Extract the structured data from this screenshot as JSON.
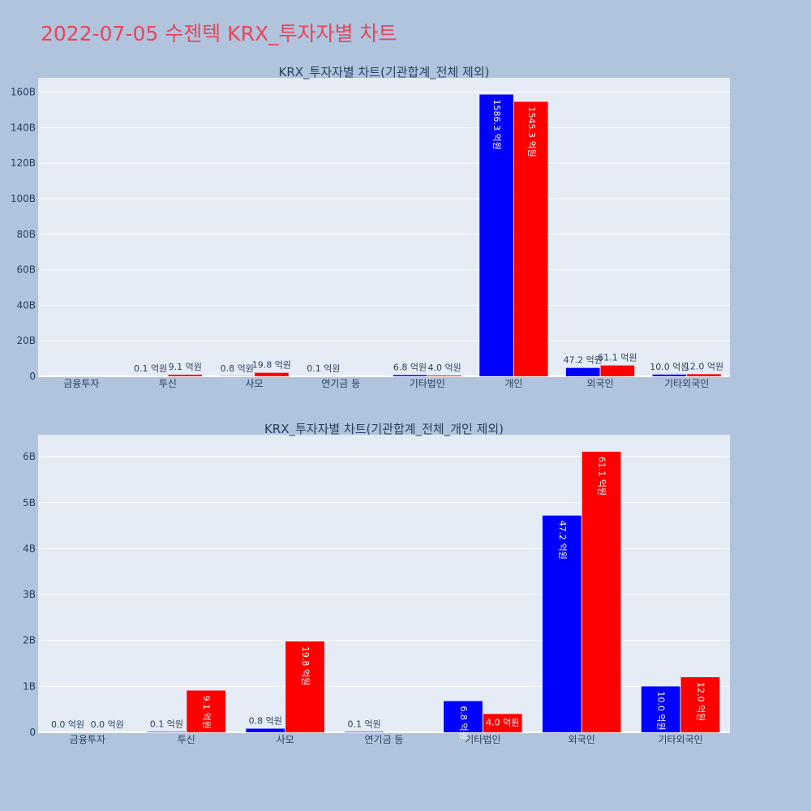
{
  "page_title": "2022-07-05 수젠텍 KRX_투자자별 차트",
  "colors": {
    "buy": "#0000ff",
    "sell": "#ff0000",
    "title": "#e8455a",
    "background": "#b0c4de",
    "plot": "#e5ecf6"
  },
  "chart_data": [
    {
      "type": "bar",
      "title": "KRX_투자자별 차트(기관합계_전체 제외)",
      "categories": [
        "금융투자",
        "투신",
        "사모",
        "연기금 등",
        "기타법인",
        "개인",
        "외국인",
        "기타외국인"
      ],
      "series": [
        {
          "color": "#0000ff",
          "values": [
            0,
            10000000,
            80000000,
            10000000,
            680000000,
            158630000000,
            4720000000,
            1000000000
          ],
          "labels": [
            "",
            "0.1 억원",
            "0.8 억원",
            "0.1 억원",
            "6.8 억원",
            "1586.3 억원",
            "47.2 억원",
            "10.0 억원"
          ]
        },
        {
          "color": "#ff0000",
          "values": [
            0,
            910000000,
            1980000000,
            0,
            400000000,
            154530000000,
            6110000000,
            1200000000
          ],
          "labels": [
            "",
            "9.1 억원",
            "19.8 억원",
            "",
            "4.0 억원",
            "1545.3 억원",
            "61.1 억원",
            "12.0 억원"
          ]
        }
      ],
      "ylim": [
        0,
        168000000000
      ],
      "yticks": [
        0,
        20000000000,
        40000000000,
        60000000000,
        80000000000,
        100000000000,
        120000000000,
        140000000000,
        160000000000
      ],
      "ytick_labels": [
        "0",
        "20B",
        "40B",
        "60B",
        "80B",
        "100B",
        "120B",
        "140B",
        "160B"
      ],
      "grid": true
    },
    {
      "type": "bar",
      "title": "KRX_투자자별 차트(기관합계_전체_개인 제외)",
      "categories": [
        "금융투자",
        "투신",
        "사모",
        "연기금 등",
        "기타법인",
        "외국인",
        "기타외국인"
      ],
      "series": [
        {
          "color": "#0000ff",
          "values": [
            0,
            10000000,
            80000000,
            10000000,
            680000000,
            4720000000,
            1000000000
          ],
          "labels": [
            "0.0 억원",
            "0.1 억원",
            "0.8 억원",
            "0.1 억원",
            "6.8 억원",
            "47.2 억원",
            "10.0 억원"
          ]
        },
        {
          "color": "#ff0000",
          "values": [
            0,
            910000000,
            1980000000,
            0,
            400000000,
            6110000000,
            1200000000
          ],
          "labels": [
            "0.0 억원",
            "9.1 억원",
            "19.8 억원",
            "",
            "4.0 억원",
            "61.1 억원",
            "12.0 억원"
          ]
        }
      ],
      "ylim": [
        0,
        6480000000
      ],
      "yticks": [
        0,
        1000000000,
        2000000000,
        3000000000,
        4000000000,
        5000000000,
        6000000000
      ],
      "ytick_labels": [
        "0",
        "1B",
        "2B",
        "3B",
        "4B",
        "5B",
        "6B"
      ],
      "grid": true
    }
  ]
}
